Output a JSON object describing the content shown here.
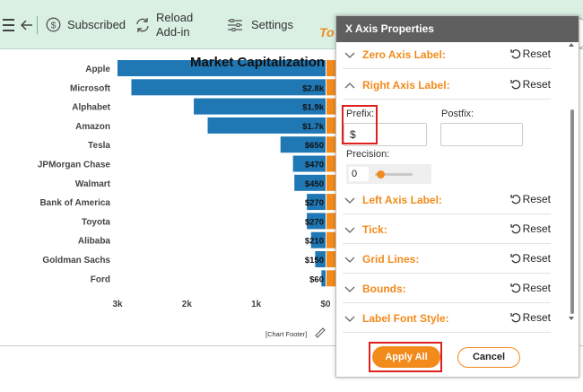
{
  "toolbar": {
    "subscribed_label": "Subscribed",
    "reload_label_1": "Reload",
    "reload_label_2": "Add-in",
    "settings_label": "Settings",
    "cut_text": "To"
  },
  "chart_data": {
    "type": "bar",
    "title": "Market Capitalization",
    "categories": [
      "Apple",
      "Microsoft",
      "Alphabet",
      "Amazon",
      "Tesla",
      "JPMorgan Chase",
      "Walmart",
      "Bank of America",
      "Toyota",
      "Alibaba",
      "Goldman Sachs",
      "Ford"
    ],
    "series": [
      {
        "values": [
          3000,
          2800,
          1900,
          1700,
          650,
          470,
          450,
          270,
          270,
          210,
          150,
          60
        ],
        "color": "#1f77b4"
      }
    ],
    "data_labels": [
      "",
      "$2.8k",
      "$1.9k",
      "$1.7k",
      "$650",
      "$470",
      "$450",
      "$270",
      "$270",
      "$210",
      "$150",
      "$60"
    ],
    "x_ticks": [
      "3k",
      "2k",
      "1k",
      "$0"
    ],
    "xlim": [
      0,
      3000
    ],
    "orientation": "horizontal-reversed",
    "footer": "[Chart Footer]"
  },
  "panel": {
    "title": "X Axis Properties",
    "reset_label": "Reset",
    "rows": [
      {
        "label": "Zero Axis Label:",
        "expanded": false
      },
      {
        "label": "Right Axis Label:",
        "expanded": true
      },
      {
        "label": "Left Axis Label:",
        "expanded": false
      },
      {
        "label": "Tick:",
        "expanded": false
      },
      {
        "label": "Grid Lines:",
        "expanded": false
      },
      {
        "label": "Bounds:",
        "expanded": false
      },
      {
        "label": "Label Font Style:",
        "expanded": false
      }
    ],
    "prefix_label": "Prefix:",
    "prefix_value": "$",
    "postfix_label": "Postfix:",
    "postfix_value": "",
    "precision_label": "Precision:",
    "precision_value": "0",
    "apply_label": "Apply All",
    "cancel_label": "Cancel"
  },
  "colors": {
    "accent": "#f28a1c",
    "bar_blue": "#1f77b4",
    "toolbar_bg": "#d9f0e3",
    "panel_header": "#5f5f5f",
    "highlight": "#e0201c"
  }
}
